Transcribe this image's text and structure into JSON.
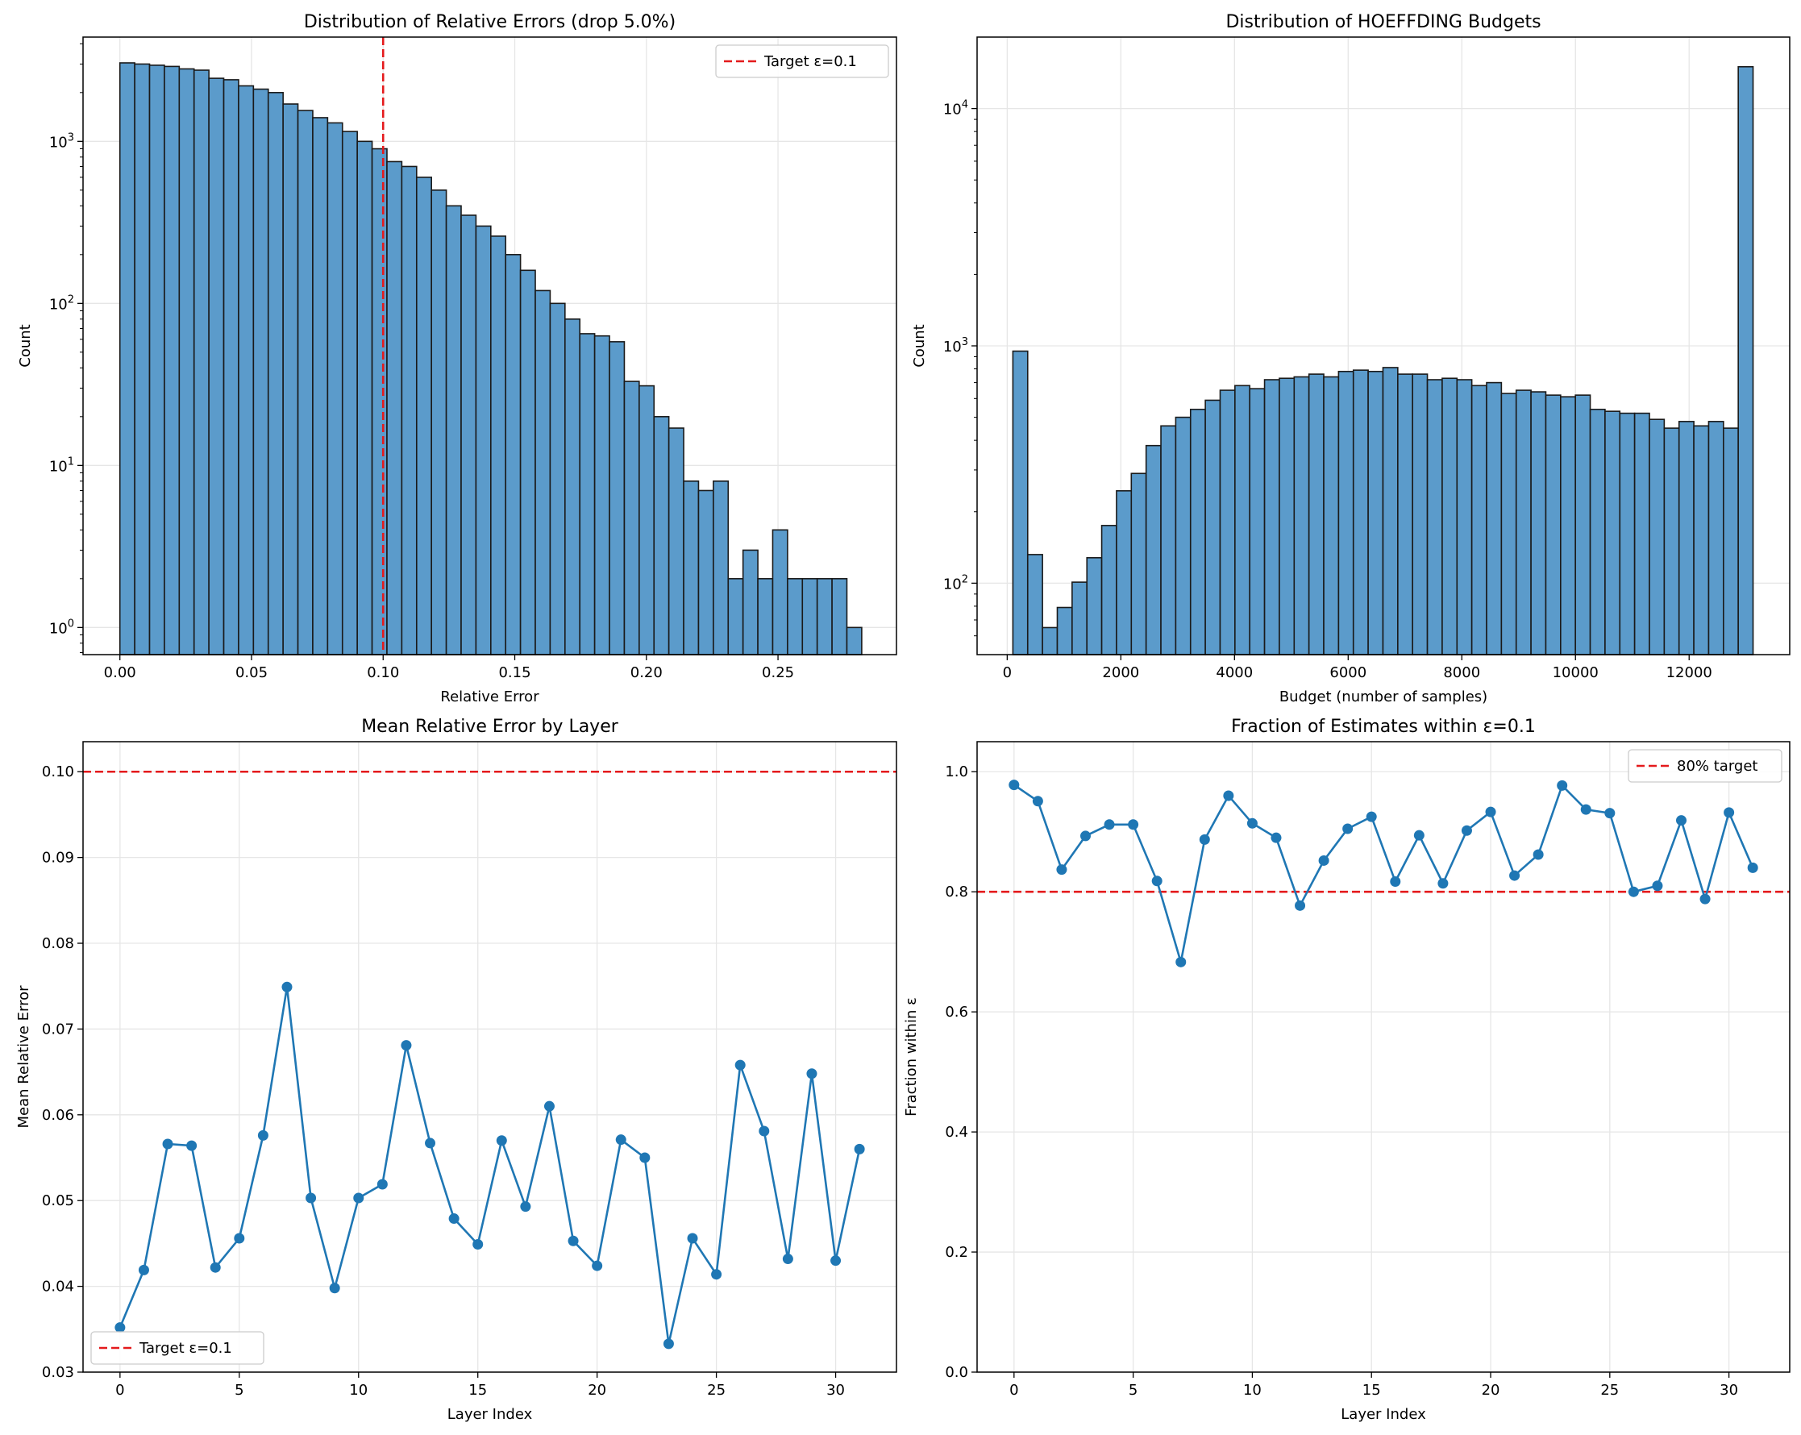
{
  "chart_data": [
    {
      "type": "bar",
      "title": "Distribution of Relative Errors (drop 5.0%)",
      "xlabel": "Relative Error",
      "ylabel": "Count",
      "yscale": "log",
      "xlim": [
        -0.014,
        0.295
      ],
      "ylim": [
        0.68,
        4400
      ],
      "xticks": [
        0.0,
        0.05,
        0.1,
        0.15,
        0.2,
        0.25
      ],
      "xtick_labels": [
        "0.00",
        "0.05",
        "0.10",
        "0.15",
        "0.20",
        "0.25"
      ],
      "yticks": [
        1,
        10,
        100,
        1000
      ],
      "ytick_labels": [
        "10^0",
        "10^1",
        "10^2",
        "10^3"
      ],
      "bin_start": 0.0,
      "bin_width": 0.005636,
      "values": [
        3050,
        3000,
        2950,
        2900,
        2800,
        2750,
        2450,
        2400,
        2200,
        2100,
        2000,
        1700,
        1550,
        1400,
        1300,
        1150,
        1000,
        900,
        750,
        700,
        600,
        500,
        400,
        350,
        300,
        260,
        200,
        160,
        120,
        100,
        80,
        65,
        63,
        58,
        33,
        31,
        20,
        17,
        8,
        7,
        8,
        2,
        3,
        2,
        4,
        2,
        2,
        2,
        2,
        1
      ],
      "reference_line": {
        "x": 0.1,
        "label": "Target ε=0.1",
        "color": "#e41a1c"
      },
      "legend": {
        "position": "upper-right",
        "entries": [
          "Target ε=0.1"
        ]
      },
      "bar_color": "#5b9bcb",
      "grid": true
    },
    {
      "type": "bar",
      "title": "Distribution of HOEFFDING Budgets",
      "xlabel": "Budget (number of samples)",
      "ylabel": "Count",
      "yscale": "log",
      "xlim": [
        -530,
        13770
      ],
      "ylim": [
        50,
        20000
      ],
      "xticks": [
        0,
        2000,
        4000,
        6000,
        8000,
        10000,
        12000
      ],
      "xtick_labels": [
        "0",
        "2000",
        "4000",
        "6000",
        "8000",
        "10000",
        "12000"
      ],
      "yticks": [
        100,
        1000,
        10000
      ],
      "ytick_labels": [
        "10^2",
        "10^3",
        "10^4"
      ],
      "bin_start": 100,
      "bin_width": 260.5,
      "values": [
        950,
        132,
        65,
        79,
        101,
        128,
        175,
        245,
        290,
        380,
        460,
        500,
        540,
        590,
        650,
        680,
        660,
        720,
        730,
        740,
        760,
        740,
        780,
        790,
        780,
        810,
        760,
        760,
        720,
        730,
        720,
        680,
        700,
        630,
        650,
        640,
        620,
        610,
        620,
        540,
        530,
        520,
        520,
        490,
        450,
        480,
        460,
        480,
        450,
        15000
      ],
      "bar_color": "#5b9bcb",
      "grid": true
    },
    {
      "type": "line",
      "title": "Mean Relative Error by Layer",
      "xlabel": "Layer Index",
      "ylabel": "Mean Relative Error",
      "xlim": [
        -1.55,
        32.55
      ],
      "ylim": [
        0.03,
        0.1035
      ],
      "xticks": [
        0,
        5,
        10,
        15,
        20,
        25,
        30
      ],
      "xtick_labels": [
        "0",
        "5",
        "10",
        "15",
        "20",
        "25",
        "30"
      ],
      "yticks": [
        0.03,
        0.04,
        0.05,
        0.06,
        0.07,
        0.08,
        0.09,
        0.1
      ],
      "ytick_labels": [
        "0.03",
        "0.04",
        "0.05",
        "0.06",
        "0.07",
        "0.08",
        "0.09",
        "0.10"
      ],
      "x": [
        0,
        1,
        2,
        3,
        4,
        5,
        6,
        7,
        8,
        9,
        10,
        11,
        12,
        13,
        14,
        15,
        16,
        17,
        18,
        19,
        20,
        21,
        22,
        23,
        24,
        25,
        26,
        27,
        28,
        29,
        30,
        31
      ],
      "y": [
        0.0352,
        0.0419,
        0.0566,
        0.0564,
        0.0422,
        0.0456,
        0.0576,
        0.0749,
        0.0503,
        0.0398,
        0.0503,
        0.0519,
        0.0681,
        0.0567,
        0.0479,
        0.0449,
        0.057,
        0.0493,
        0.061,
        0.0453,
        0.0424,
        0.0571,
        0.055,
        0.0333,
        0.0456,
        0.0414,
        0.0658,
        0.0581,
        0.0432,
        0.0648,
        0.043,
        0.056
      ],
      "reference_line": {
        "y": 0.1,
        "label": "Target ε=0.1",
        "color": "#e41a1c"
      },
      "legend": {
        "position": "lower-left",
        "entries": [
          "Target ε=0.1"
        ]
      },
      "line_color": "#1f77b4",
      "grid": true
    },
    {
      "type": "line",
      "title": "Fraction of Estimates within ε=0.1",
      "xlabel": "Layer Index",
      "ylabel": "Fraction within ε",
      "xlim": [
        -1.55,
        32.55
      ],
      "ylim": [
        0.0,
        1.05
      ],
      "xticks": [
        0,
        5,
        10,
        15,
        20,
        25,
        30
      ],
      "xtick_labels": [
        "0",
        "5",
        "10",
        "15",
        "20",
        "25",
        "30"
      ],
      "yticks": [
        0.0,
        0.2,
        0.4,
        0.6,
        0.8,
        1.0
      ],
      "ytick_labels": [
        "0.0",
        "0.2",
        "0.4",
        "0.6",
        "0.8",
        "1.0"
      ],
      "x": [
        0,
        1,
        2,
        3,
        4,
        5,
        6,
        7,
        8,
        9,
        10,
        11,
        12,
        13,
        14,
        15,
        16,
        17,
        18,
        19,
        20,
        21,
        22,
        23,
        24,
        25,
        26,
        27,
        28,
        29,
        30,
        31
      ],
      "y": [
        0.978,
        0.951,
        0.837,
        0.893,
        0.912,
        0.912,
        0.818,
        0.683,
        0.887,
        0.96,
        0.914,
        0.89,
        0.777,
        0.852,
        0.905,
        0.925,
        0.817,
        0.894,
        0.814,
        0.902,
        0.933,
        0.827,
        0.862,
        0.977,
        0.937,
        0.931,
        0.8,
        0.81,
        0.919,
        0.788,
        0.932,
        0.84
      ],
      "reference_line": {
        "y": 0.8,
        "label": "80% target",
        "color": "#e41a1c"
      },
      "legend": {
        "position": "upper-right",
        "entries": [
          "80% target"
        ]
      },
      "line_color": "#1f77b4",
      "grid": true
    }
  ]
}
